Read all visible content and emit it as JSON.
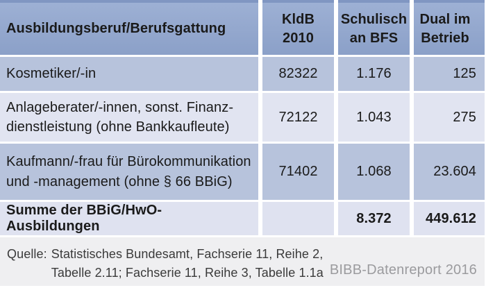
{
  "chart_data": {
    "type": "table",
    "title": "",
    "columns": [
      "Ausbildungsberuf/Berufsgattung",
      "KldB 2010",
      "Schulisch an BFS",
      "Dual im Betrieb"
    ],
    "rows": [
      [
        "Kosmetiker/-in",
        "82322",
        "1.176",
        "125"
      ],
      [
        "Anlageberater/-innen, sonst. Finanzdienstleistung (ohne Bankkaufleute)",
        "72122",
        "1.043",
        "275"
      ],
      [
        "Kaufmann/-frau für Bürokommunikation und -management (ohne § 66 BBiG)",
        "71402",
        "1.068",
        "23.604"
      ],
      [
        "Summe der BBiG/HwO-Ausbildungen",
        "",
        "8.372",
        "449.612"
      ]
    ],
    "source": "Quelle: Statistisches Bundesamt, Fachserie 11, Reihe 2, Tabelle 2.11; Fachserie 11, Reihe 3, Tabelle 1.1a",
    "credit": "BIBB-Datenreport 2016"
  },
  "table": {
    "header": {
      "occupation": "Ausbildungsberuf/Berufsgattung",
      "kldb_lines": [
        "KldB",
        "2010"
      ],
      "bfs_lines": [
        "Schulisch",
        "an BFS"
      ],
      "dual_lines": [
        "Dual im",
        "Betrieb"
      ]
    },
    "rows": [
      {
        "name_lines": [
          "Kosmetiker/-in"
        ],
        "kldb": "82322",
        "bfs": "1.176",
        "dual": "125"
      },
      {
        "name_lines": [
          "Anlageberater/-innen, sonst. Finanz-",
          "dienstleistung (ohne Bankkaufleute)"
        ],
        "kldb": "72122",
        "bfs": "1.043",
        "dual": "275"
      },
      {
        "name_lines": [
          "Kaufmann/-frau für Bürokommunikation",
          "und -management (ohne § 66 BBiG)"
        ],
        "kldb": "71402",
        "bfs": "1.068",
        "dual": "23.604"
      }
    ],
    "total": {
      "label": "Summe der BBiG/HwO-Ausbildungen",
      "kldb": "",
      "bfs": "8.372",
      "dual": "449.612"
    }
  },
  "footer": {
    "source_label": "Quelle:",
    "source_lines": [
      "Statistisches Bundesamt, Fachserie 11, Reihe 2,",
      "Tabelle 2.11; Fachserie 11, Reihe 3, Tabelle 1.1a"
    ],
    "credit": "BIBB-Datenreport 2016"
  },
  "colors": {
    "header_bg": "#8fa4ca",
    "header_border_top": "#8096c2",
    "row_blue": "#b7c3dc",
    "row_light": "#e1e4f1",
    "total_bg": "#dfe2f0",
    "footer_bg": "#efeff1",
    "text": "#1a1a1a",
    "credit_text": "#9b9b9e"
  }
}
